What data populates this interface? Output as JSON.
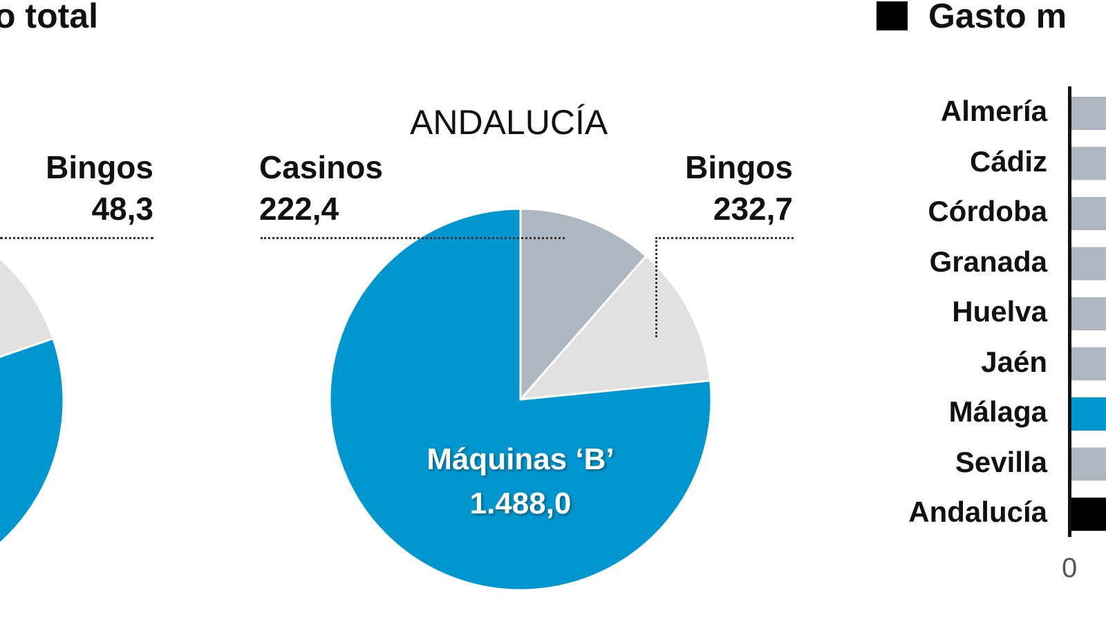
{
  "chart_data": [
    {
      "type": "pie",
      "title": "o total",
      "slices": [
        {
          "label": "Bingos",
          "value": 48.3,
          "value_text": "48,3",
          "color": "#e1e1e1"
        }
      ]
    },
    {
      "type": "pie",
      "title": "ANDALUCÍA",
      "slices": [
        {
          "label": "Casinos",
          "value": 222.4,
          "value_text": "222,4",
          "color": "#aeb7c1"
        },
        {
          "label": "Bingos",
          "value": 232.7,
          "value_text": "232,7",
          "color": "#e1e1e1"
        },
        {
          "label": "Máquinas ‘B’",
          "value": 1488.0,
          "value_text": "1.488,0",
          "color": "#0096cf"
        }
      ]
    },
    {
      "type": "bar",
      "orientation": "horizontal",
      "title": "Gasto m",
      "categories": [
        "Almería",
        "Cádiz",
        "Córdoba",
        "Granada",
        "Huelva",
        "Jaén",
        "Málaga",
        "Sevilla",
        "Andalucía"
      ],
      "colors": [
        "#aeb7c1",
        "#aeb7c1",
        "#aeb7c1",
        "#aeb7c1",
        "#aeb7c1",
        "#aeb7c1",
        "#0096cf",
        "#aeb7c1",
        "#000000"
      ],
      "x_tick_labels": [
        "0"
      ]
    }
  ]
}
